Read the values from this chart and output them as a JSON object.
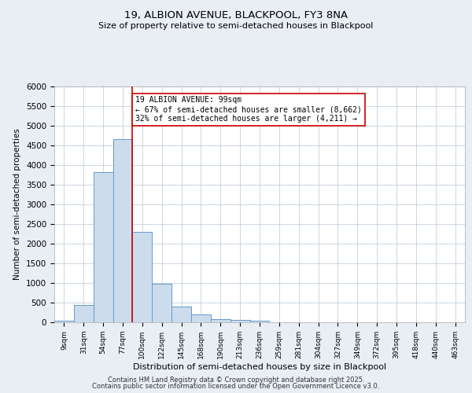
{
  "title1": "19, ALBION AVENUE, BLACKPOOL, FY3 8NA",
  "title2": "Size of property relative to semi-detached houses in Blackpool",
  "xlabel": "Distribution of semi-detached houses by size in Blackpool",
  "ylabel": "Number of semi-detached properties",
  "bar_color": "#ccdcec",
  "bar_edge_color": "#6699cc",
  "categories": [
    "9sqm",
    "31sqm",
    "54sqm",
    "77sqm",
    "100sqm",
    "122sqm",
    "145sqm",
    "168sqm",
    "190sqm",
    "213sqm",
    "236sqm",
    "259sqm",
    "281sqm",
    "304sqm",
    "327sqm",
    "349sqm",
    "372sqm",
    "395sqm",
    "418sqm",
    "440sqm",
    "463sqm"
  ],
  "values": [
    50,
    440,
    3820,
    4660,
    2300,
    990,
    400,
    200,
    80,
    60,
    40,
    0,
    0,
    0,
    0,
    0,
    0,
    0,
    0,
    0,
    0
  ],
  "property_line_color": "#cc0000",
  "property_line_index": 3.5,
  "annotation_text": "19 ALBION AVENUE: 99sqm\n← 67% of semi-detached houses are smaller (8,662)\n32% of semi-detached houses are larger (4,211) →",
  "annotation_box_color": "white",
  "annotation_box_edge": "#cc0000",
  "ylim": [
    0,
    6000
  ],
  "yticks": [
    0,
    500,
    1000,
    1500,
    2000,
    2500,
    3000,
    3500,
    4000,
    4500,
    5000,
    5500,
    6000
  ],
  "footer1": "Contains HM Land Registry data © Crown copyright and database right 2025.",
  "footer2": "Contains public sector information licensed under the Open Government Licence v3.0.",
  "background_color": "#e8eef4",
  "plot_background": "#ffffff",
  "grid_color": "#b8c8d8"
}
